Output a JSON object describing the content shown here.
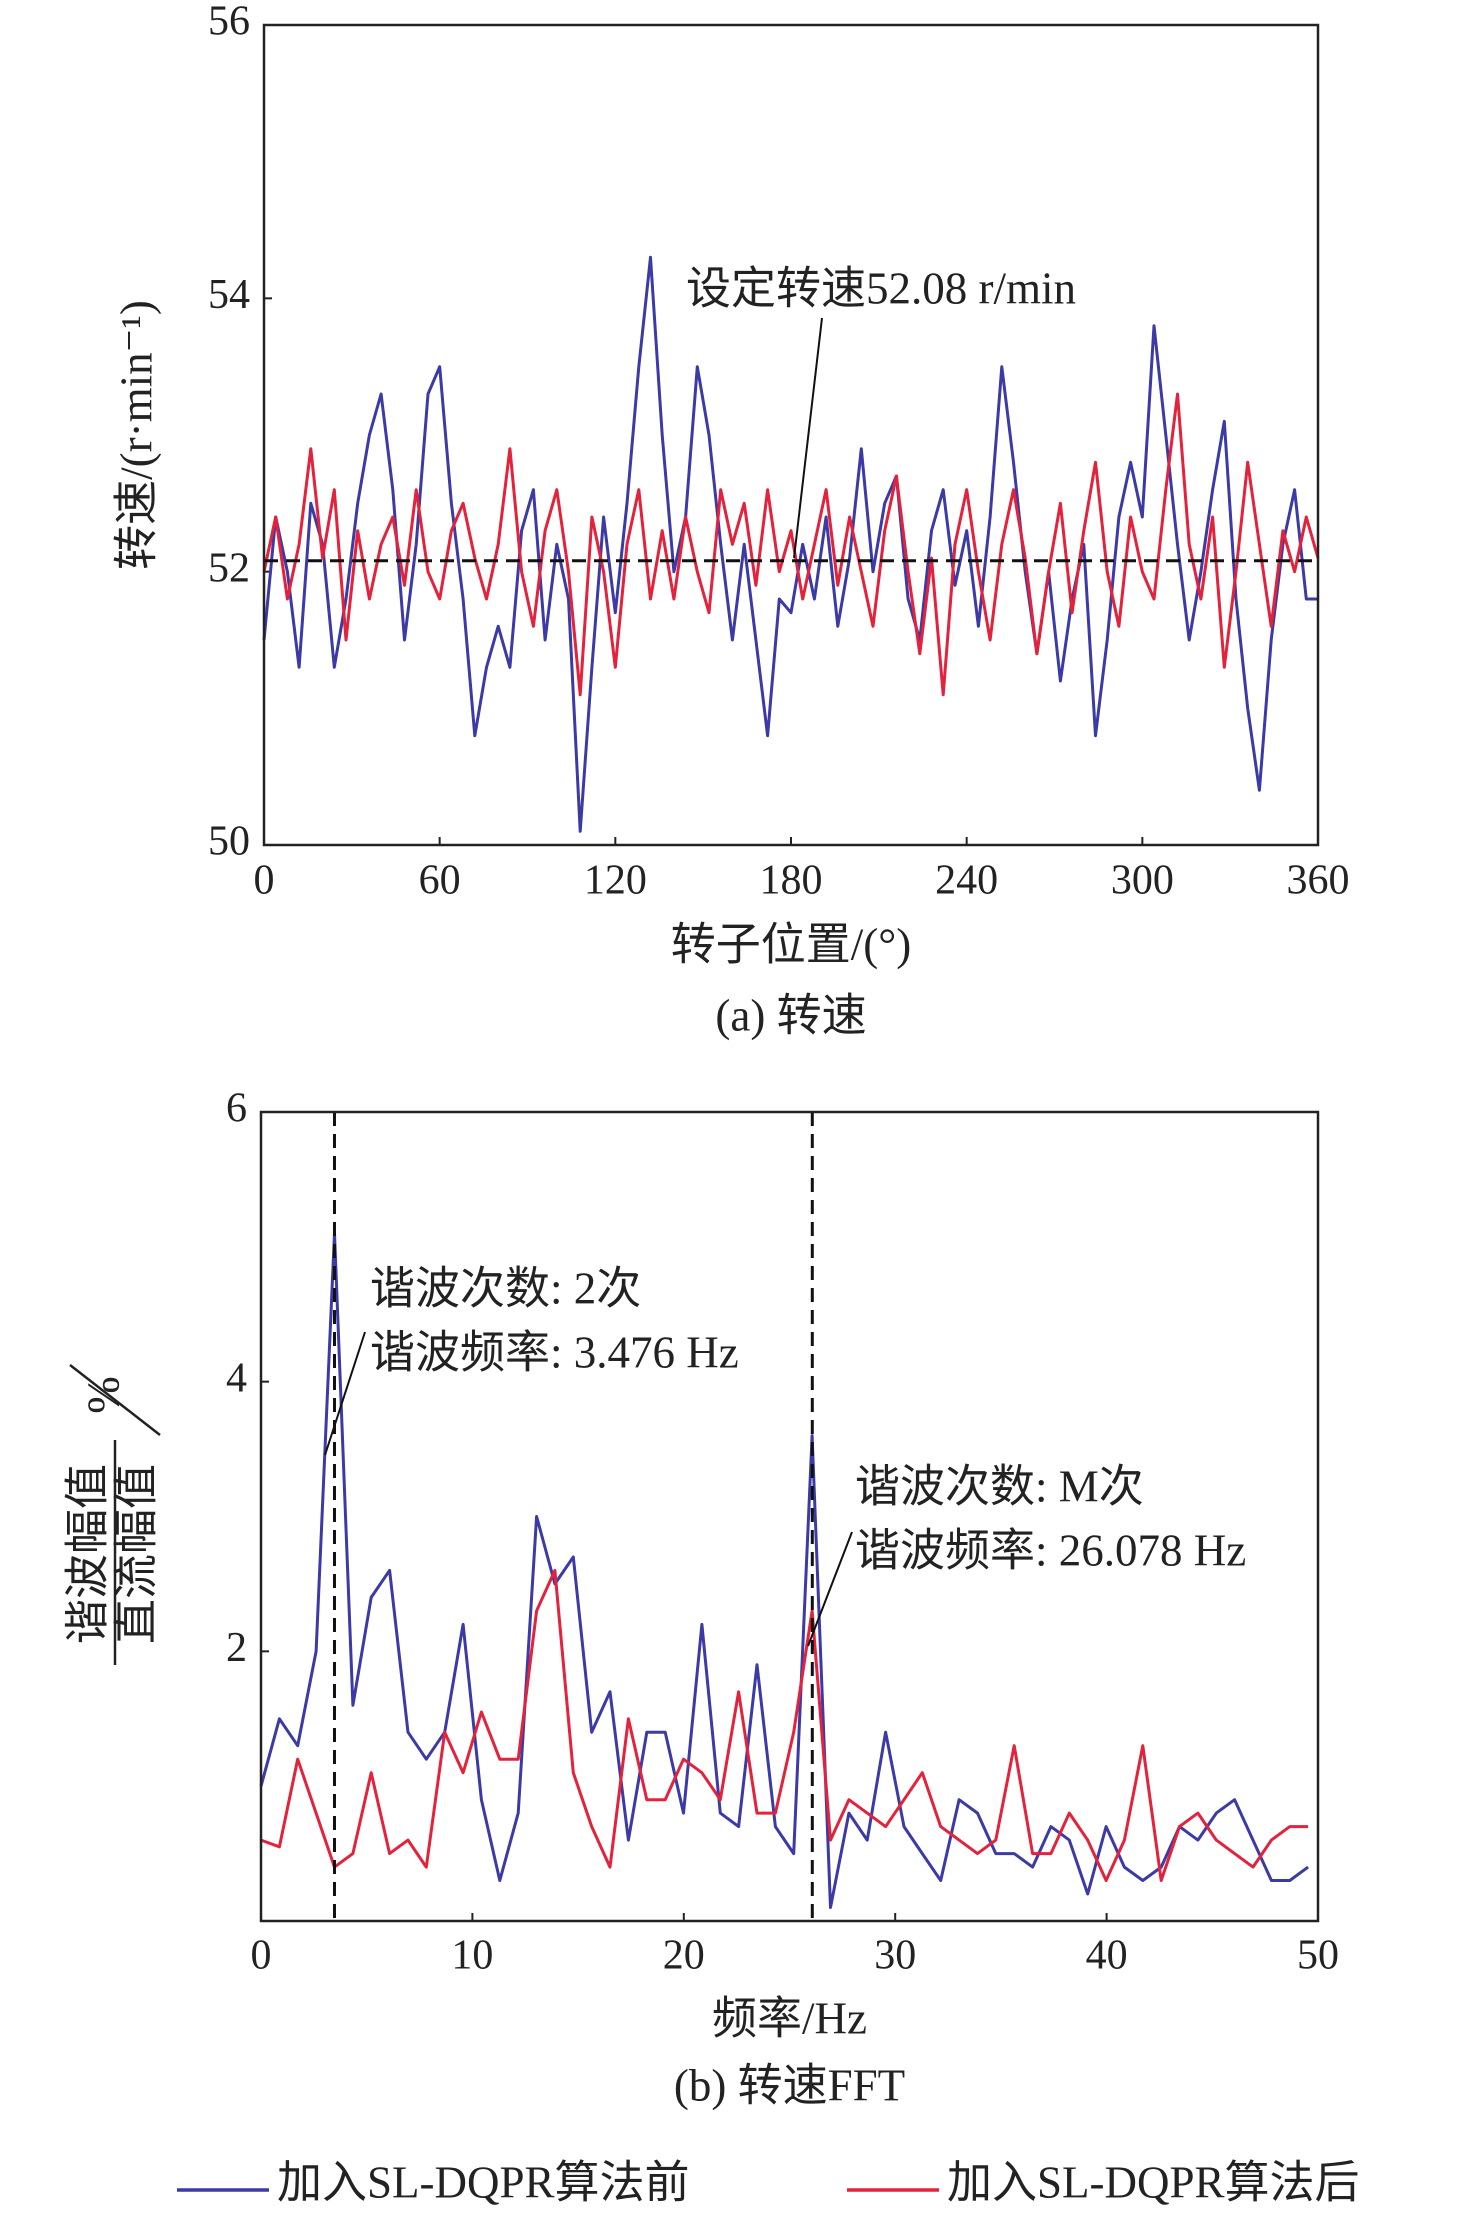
{
  "chart_data": [
    {
      "type": "line",
      "x": [
        0,
        4,
        8,
        12,
        16,
        20,
        24,
        28,
        32,
        36,
        40,
        44,
        48,
        52,
        56,
        60,
        64,
        68,
        72,
        76,
        80,
        84,
        88,
        92,
        96,
        100,
        104,
        108,
        112,
        116,
        120,
        124,
        128,
        132,
        136,
        140,
        144,
        148,
        152,
        156,
        160,
        164,
        168,
        172,
        176,
        180,
        184,
        188,
        192,
        196,
        200,
        204,
        208,
        212,
        216,
        220,
        224,
        228,
        232,
        236,
        240,
        244,
        248,
        252,
        256,
        260,
        264,
        268,
        272,
        276,
        280,
        284,
        288,
        292,
        296,
        300,
        304,
        308,
        312,
        316,
        320,
        324,
        328,
        332,
        336,
        340,
        344,
        348,
        352,
        356,
        360
      ],
      "series": [
        {
          "name": "加入SL-DQPR算法前",
          "color": "#3b3aa6",
          "values": [
            51.5,
            52.4,
            52.0,
            51.3,
            52.5,
            52.2,
            51.3,
            51.8,
            52.5,
            53.0,
            53.3,
            52.6,
            51.5,
            52.2,
            53.3,
            53.5,
            52.5,
            51.8,
            50.8,
            51.3,
            51.6,
            51.3,
            52.3,
            52.6,
            51.5,
            52.2,
            51.8,
            50.1,
            51.3,
            52.4,
            51.7,
            52.5,
            53.5,
            54.3,
            53.0,
            52.0,
            52.4,
            53.5,
            53.0,
            52.2,
            51.5,
            52.2,
            51.5,
            50.8,
            51.8,
            51.7,
            52.2,
            51.8,
            52.4,
            51.6,
            52.1,
            52.9,
            52.0,
            52.5,
            52.7,
            51.8,
            51.5,
            52.3,
            52.6,
            51.9,
            52.3,
            51.6,
            52.4,
            53.5,
            52.8,
            52.0,
            51.4,
            52.0,
            51.2,
            51.8,
            52.2,
            50.8,
            51.5,
            52.4,
            52.8,
            52.4,
            53.8,
            53.0,
            52.2,
            51.5,
            52.0,
            52.6,
            53.1,
            51.8,
            51.0,
            50.4,
            51.5,
            52.2,
            52.6,
            51.8,
            51.8
          ]
        },
        {
          "name": "加入SL-DQPR算法后",
          "color": "#e3223c",
          "values": [
            52.0,
            52.4,
            51.8,
            52.2,
            52.9,
            52.1,
            52.6,
            51.5,
            52.3,
            51.8,
            52.2,
            52.4,
            51.9,
            52.6,
            52.0,
            51.8,
            52.3,
            52.5,
            52.1,
            51.8,
            52.2,
            52.9,
            52.0,
            51.6,
            52.3,
            52.6,
            52.0,
            51.1,
            52.4,
            52.0,
            51.3,
            52.2,
            52.6,
            51.8,
            52.3,
            51.8,
            52.4,
            52.0,
            51.7,
            52.6,
            52.2,
            52.5,
            51.9,
            52.6,
            52.0,
            52.3,
            51.8,
            52.2,
            52.6,
            51.9,
            52.4,
            52.0,
            51.6,
            52.3,
            52.7,
            52.0,
            51.4,
            52.1,
            51.1,
            52.2,
            52.6,
            52.0,
            51.5,
            52.2,
            52.6,
            52.1,
            51.4,
            52.0,
            52.5,
            51.7,
            52.3,
            52.8,
            52.0,
            51.6,
            52.4,
            52.0,
            51.8,
            52.6,
            53.3,
            52.2,
            51.8,
            52.4,
            51.3,
            52.0,
            52.8,
            52.2,
            51.6,
            52.3,
            52.0,
            52.4,
            52.1
          ]
        }
      ],
      "xlim": [
        0,
        360
      ],
      "ylim": [
        50,
        56
      ],
      "xticks": [
        0,
        60,
        120,
        180,
        240,
        300,
        360
      ],
      "yticks": [
        50,
        52,
        54,
        56
      ],
      "xlabel": "转子位置/(°)",
      "ylabel": "转速/(r·min⁻¹)",
      "caption": "(a) 转速",
      "hlines": [
        52.08
      ],
      "annotations": [
        "设定转速52.08 r/min"
      ]
    },
    {
      "type": "line",
      "x": [
        0,
        0.869,
        1.738,
        2.607,
        3.476,
        4.345,
        5.214,
        6.083,
        6.952,
        7.821,
        8.69,
        9.559,
        10.428,
        11.297,
        12.166,
        13.035,
        13.904,
        14.773,
        15.642,
        16.511,
        17.38,
        18.249,
        19.118,
        19.987,
        20.856,
        21.725,
        22.594,
        23.463,
        24.332,
        25.201,
        26.07,
        26.939,
        27.808,
        28.677,
        29.546,
        30.415,
        31.284,
        32.153,
        33.022,
        33.891,
        34.76,
        35.629,
        36.498,
        37.367,
        38.236,
        39.105,
        39.974,
        40.843,
        41.712,
        42.581,
        43.45,
        44.319,
        45.188,
        46.057,
        46.926,
        47.795,
        48.664,
        49.533
      ],
      "series": [
        {
          "color": "#3b3aa6",
          "values": [
            1.0,
            1.5,
            1.3,
            2.0,
            5.1,
            1.6,
            2.4,
            2.6,
            1.4,
            1.2,
            1.4,
            2.2,
            0.9,
            0.3,
            0.8,
            3.0,
            2.5,
            2.7,
            1.4,
            1.7,
            0.6,
            1.4,
            1.4,
            0.8,
            2.2,
            0.8,
            0.7,
            1.9,
            0.7,
            0.5,
            3.6,
            0.1,
            0.8,
            0.6,
            1.4,
            0.7,
            0.5,
            0.3,
            0.9,
            0.8,
            0.5,
            0.5,
            0.4,
            0.7,
            0.6,
            0.2,
            0.7,
            0.4,
            0.3,
            0.4,
            0.7,
            0.6,
            0.8,
            0.9,
            0.6,
            0.3,
            0.3,
            0.4
          ]
        },
        {
          "color": "#e3223c",
          "values": [
            0.6,
            0.55,
            1.2,
            0.8,
            0.4,
            0.5,
            1.1,
            0.5,
            0.6,
            0.4,
            1.4,
            1.1,
            1.55,
            1.2,
            1.2,
            2.3,
            2.6,
            1.1,
            0.7,
            0.4,
            1.5,
            0.9,
            0.9,
            1.2,
            1.1,
            0.9,
            1.7,
            0.8,
            0.8,
            1.4,
            2.3,
            0.6,
            0.9,
            0.8,
            0.7,
            0.9,
            1.1,
            0.7,
            0.6,
            0.5,
            0.6,
            1.3,
            0.5,
            0.5,
            0.8,
            0.6,
            0.3,
            0.6,
            1.3,
            0.3,
            0.7,
            0.8,
            0.6,
            0.5,
            0.4,
            0.6,
            0.7,
            0.7
          ]
        }
      ],
      "xlim": [
        0,
        50
      ],
      "ylim": [
        0,
        6
      ],
      "xticks": [
        0,
        10,
        20,
        30,
        40,
        50
      ],
      "yticks": [
        2,
        4,
        6
      ],
      "xlabel": "频率/Hz",
      "ylabel": {
        "numerator": "谐波幅值",
        "denominator": "直流幅值",
        "unit": "%"
      },
      "caption": "(b) 转速FFT",
      "vlines": [
        3.476,
        26.078
      ],
      "annotations": [
        "谐波次数: 2次",
        "谐波频率: 3.476 Hz",
        "谐波次数: M次",
        "谐波频率: 26.078 Hz"
      ]
    }
  ]
}
